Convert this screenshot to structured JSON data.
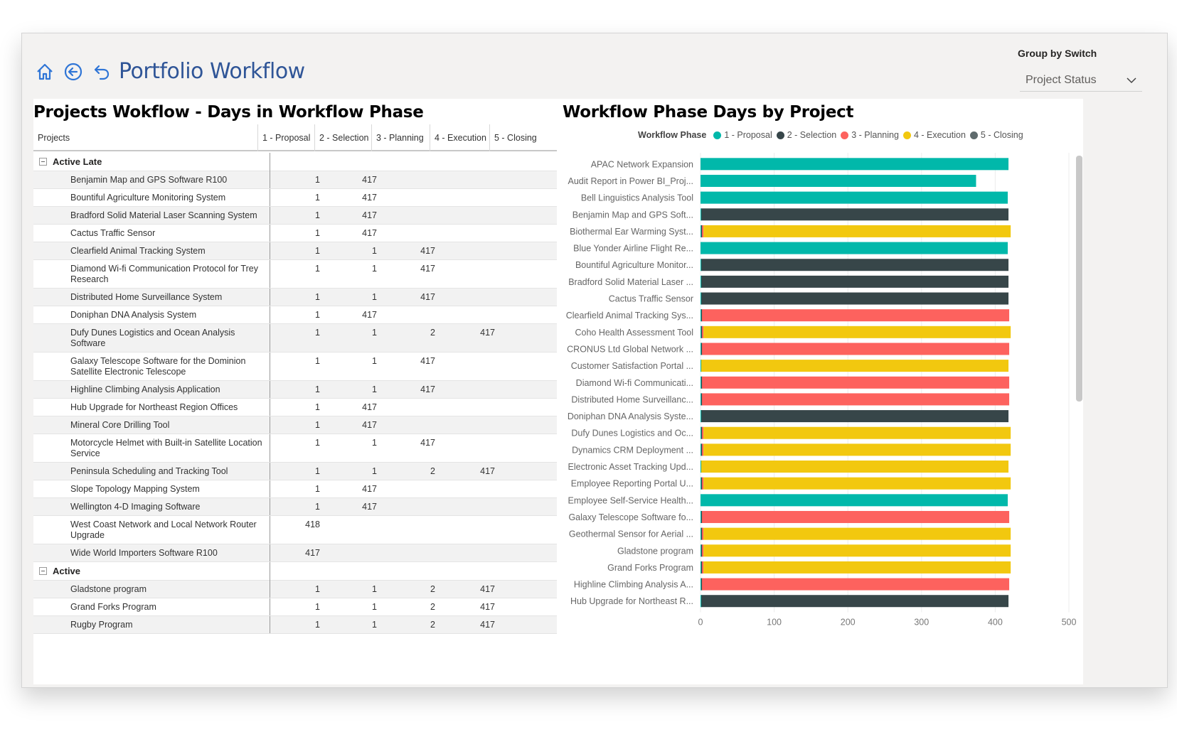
{
  "header": {
    "title": "Portfolio Workflow",
    "group_label": "Group by Switch",
    "group_value": "Project Status"
  },
  "table": {
    "title": "Projects Wokflow - Days in Workflow Phase",
    "columns": [
      "Projects",
      "1 - Proposal",
      "2 - Selection",
      "3 - Planning",
      "4 - Execution",
      "5 - Closing"
    ],
    "groups": [
      {
        "name": "Active Late",
        "rows": [
          {
            "name": "Benjamin Map and GPS Software R100",
            "v": [
              "1",
              "417",
              "",
              "",
              ""
            ]
          },
          {
            "name": "Bountiful Agriculture Monitoring System",
            "v": [
              "1",
              "417",
              "",
              "",
              ""
            ]
          },
          {
            "name": "Bradford Solid Material Laser Scanning System",
            "v": [
              "1",
              "417",
              "",
              "",
              ""
            ]
          },
          {
            "name": "Cactus Traffic Sensor",
            "v": [
              "1",
              "417",
              "",
              "",
              ""
            ]
          },
          {
            "name": "Clearfield Animal Tracking System",
            "v": [
              "1",
              "1",
              "417",
              "",
              ""
            ]
          },
          {
            "name": "Diamond Wi-fi Communication Protocol for Trey Research",
            "v": [
              "1",
              "1",
              "417",
              "",
              ""
            ]
          },
          {
            "name": "Distributed Home Surveillance System",
            "v": [
              "1",
              "1",
              "417",
              "",
              ""
            ]
          },
          {
            "name": "Doniphan DNA Analysis System",
            "v": [
              "1",
              "417",
              "",
              "",
              ""
            ]
          },
          {
            "name": "Dufy Dunes Logistics and Ocean Analysis Software",
            "v": [
              "1",
              "1",
              "2",
              "417",
              ""
            ]
          },
          {
            "name": "Galaxy Telescope Software for the Dominion Satellite Electronic Telescope",
            "v": [
              "1",
              "1",
              "417",
              "",
              ""
            ]
          },
          {
            "name": "Highline Climbing Analysis Application",
            "v": [
              "1",
              "1",
              "417",
              "",
              ""
            ]
          },
          {
            "name": "Hub Upgrade for Northeast Region Offices",
            "v": [
              "1",
              "417",
              "",
              "",
              ""
            ]
          },
          {
            "name": "Mineral Core Drilling Tool",
            "v": [
              "1",
              "417",
              "",
              "",
              ""
            ]
          },
          {
            "name": "Motorcycle Helmet with Built-in Satellite Location Service",
            "v": [
              "1",
              "1",
              "417",
              "",
              ""
            ]
          },
          {
            "name": "Peninsula Scheduling and Tracking Tool",
            "v": [
              "1",
              "1",
              "2",
              "417",
              ""
            ]
          },
          {
            "name": "Slope Topology Mapping System",
            "v": [
              "1",
              "417",
              "",
              "",
              ""
            ]
          },
          {
            "name": "Wellington 4-D Imaging Software",
            "v": [
              "1",
              "417",
              "",
              "",
              ""
            ]
          },
          {
            "name": "West Coast Network and Local Network Router Upgrade",
            "v": [
              "418",
              "",
              "",
              "",
              ""
            ]
          },
          {
            "name": "Wide World Importers Software R100",
            "v": [
              "417",
              "",
              "",
              "",
              ""
            ]
          }
        ]
      },
      {
        "name": "Active",
        "rows": [
          {
            "name": "Gladstone program",
            "v": [
              "1",
              "1",
              "2",
              "417",
              ""
            ]
          },
          {
            "name": "Grand Forks Program",
            "v": [
              "1",
              "1",
              "2",
              "417",
              ""
            ]
          },
          {
            "name": "Rugby Program",
            "v": [
              "1",
              "1",
              "2",
              "417",
              ""
            ]
          }
        ]
      }
    ]
  },
  "chart": {
    "title": "Workflow Phase Days by Project",
    "legend_title": "Workflow Phase",
    "colors": [
      "#01b8aa",
      "#374649",
      "#fd625e",
      "#f2c80f",
      "#5f6b6d"
    ]
  },
  "chart_data": {
    "type": "bar",
    "orientation": "horizontal",
    "stacked": true,
    "series_names": [
      "1 - Proposal",
      "2 - Selection",
      "3 - Planning",
      "4 - Execution",
      "5 - Closing"
    ],
    "categories": [
      "APAC Network Expansion",
      "Audit Report in Power BI_Proj...",
      "Bell Linguistics Analysis Tool",
      "Benjamin Map and GPS Soft...",
      "Biothermal Ear Warming Syst...",
      "Blue Yonder Airline Flight Re...",
      "Bountiful Agriculture Monitor...",
      "Bradford Solid Material Laser ...",
      "Cactus Traffic Sensor",
      "Clearfield Animal Tracking Sys...",
      "Coho Health Assessment Tool",
      "CRONUS Ltd Global Network ...",
      "Customer Satisfaction Portal ...",
      "Diamond Wi-fi Communicati...",
      "Distributed Home Surveillanc...",
      "Doniphan DNA Analysis Syste...",
      "Dufy Dunes Logistics and Oc...",
      "Dynamics CRM Deployment ...",
      "Electronic Asset Tracking Upd...",
      "Employee Reporting Portal U...",
      "Employee Self-Service Health...",
      "Galaxy Telescope Software fo...",
      "Geothermal Sensor for Aerial ...",
      "Gladstone program",
      "Grand Forks Program",
      "Highline Climbing Analysis A...",
      "Hub Upgrade for Northeast R..."
    ],
    "values": [
      [
        418,
        0,
        0,
        0,
        0
      ],
      [
        374,
        0,
        0,
        0,
        0
      ],
      [
        417,
        0,
        0,
        0,
        0
      ],
      [
        1,
        417,
        0,
        0,
        0
      ],
      [
        1,
        1,
        2,
        417,
        0
      ],
      [
        417,
        0,
        0,
        0,
        0
      ],
      [
        1,
        417,
        0,
        0,
        0
      ],
      [
        1,
        417,
        0,
        0,
        0
      ],
      [
        1,
        417,
        0,
        0,
        0
      ],
      [
        1,
        1,
        417,
        0,
        0
      ],
      [
        1,
        1,
        2,
        417,
        0
      ],
      [
        1,
        1,
        417,
        0,
        0
      ],
      [
        1,
        0,
        0,
        417,
        0
      ],
      [
        1,
        1,
        417,
        0,
        0
      ],
      [
        1,
        1,
        417,
        0,
        0
      ],
      [
        1,
        417,
        0,
        0,
        0
      ],
      [
        1,
        1,
        2,
        417,
        0
      ],
      [
        1,
        1,
        2,
        417,
        0
      ],
      [
        1,
        0,
        0,
        417,
        0
      ],
      [
        1,
        1,
        2,
        417,
        0
      ],
      [
        417,
        0,
        0,
        0,
        0
      ],
      [
        1,
        1,
        417,
        0,
        0
      ],
      [
        1,
        1,
        2,
        417,
        0
      ],
      [
        1,
        1,
        2,
        417,
        0
      ],
      [
        1,
        1,
        2,
        417,
        0
      ],
      [
        1,
        1,
        417,
        0,
        0
      ],
      [
        1,
        417,
        0,
        0,
        0
      ]
    ],
    "xlim": [
      0,
      500
    ],
    "xticks": [
      "0",
      "100",
      "200",
      "300",
      "400",
      "500"
    ],
    "grid": true,
    "legend_position": "top"
  }
}
